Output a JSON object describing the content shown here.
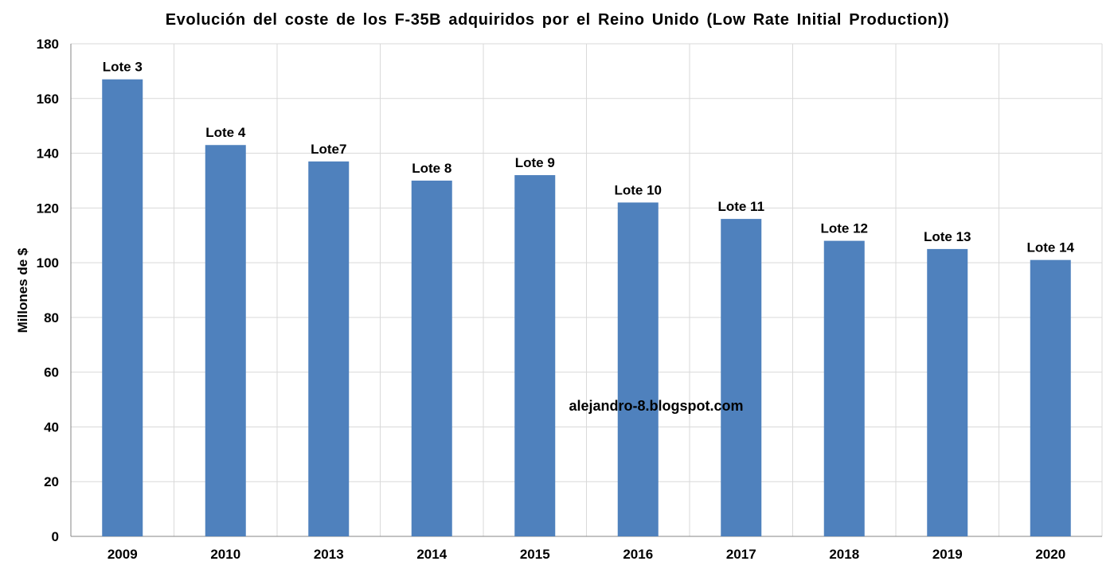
{
  "chart_data": {
    "type": "bar",
    "title": "Evolución  del  coste  de  los  F-35B  adquiridos  por  el  Reino  Unido  (Low  Rate  Initial  Production))",
    "xlabel": "",
    "ylabel": "Millones de $",
    "categories": [
      "2009",
      "2010",
      "2013",
      "2014",
      "2015",
      "2016",
      "2017",
      "2018",
      "2019",
      "2020"
    ],
    "values": [
      167,
      143,
      137,
      130,
      132,
      122,
      116,
      108,
      105,
      101
    ],
    "data_labels": [
      "Lote 3",
      "Lote 4",
      "Lote7",
      "Lote 8",
      "Lote 9",
      "Lote 10",
      "Lote 11",
      "Lote 12",
      "Lote 13",
      "Lote 14"
    ],
    "ylim": [
      0,
      180
    ],
    "yticks": [
      0,
      20,
      40,
      60,
      80,
      100,
      120,
      140,
      160,
      180
    ],
    "grid": true,
    "bar_color": "#4f81bd",
    "annotation": "alejandro-8.blogspot.com"
  }
}
